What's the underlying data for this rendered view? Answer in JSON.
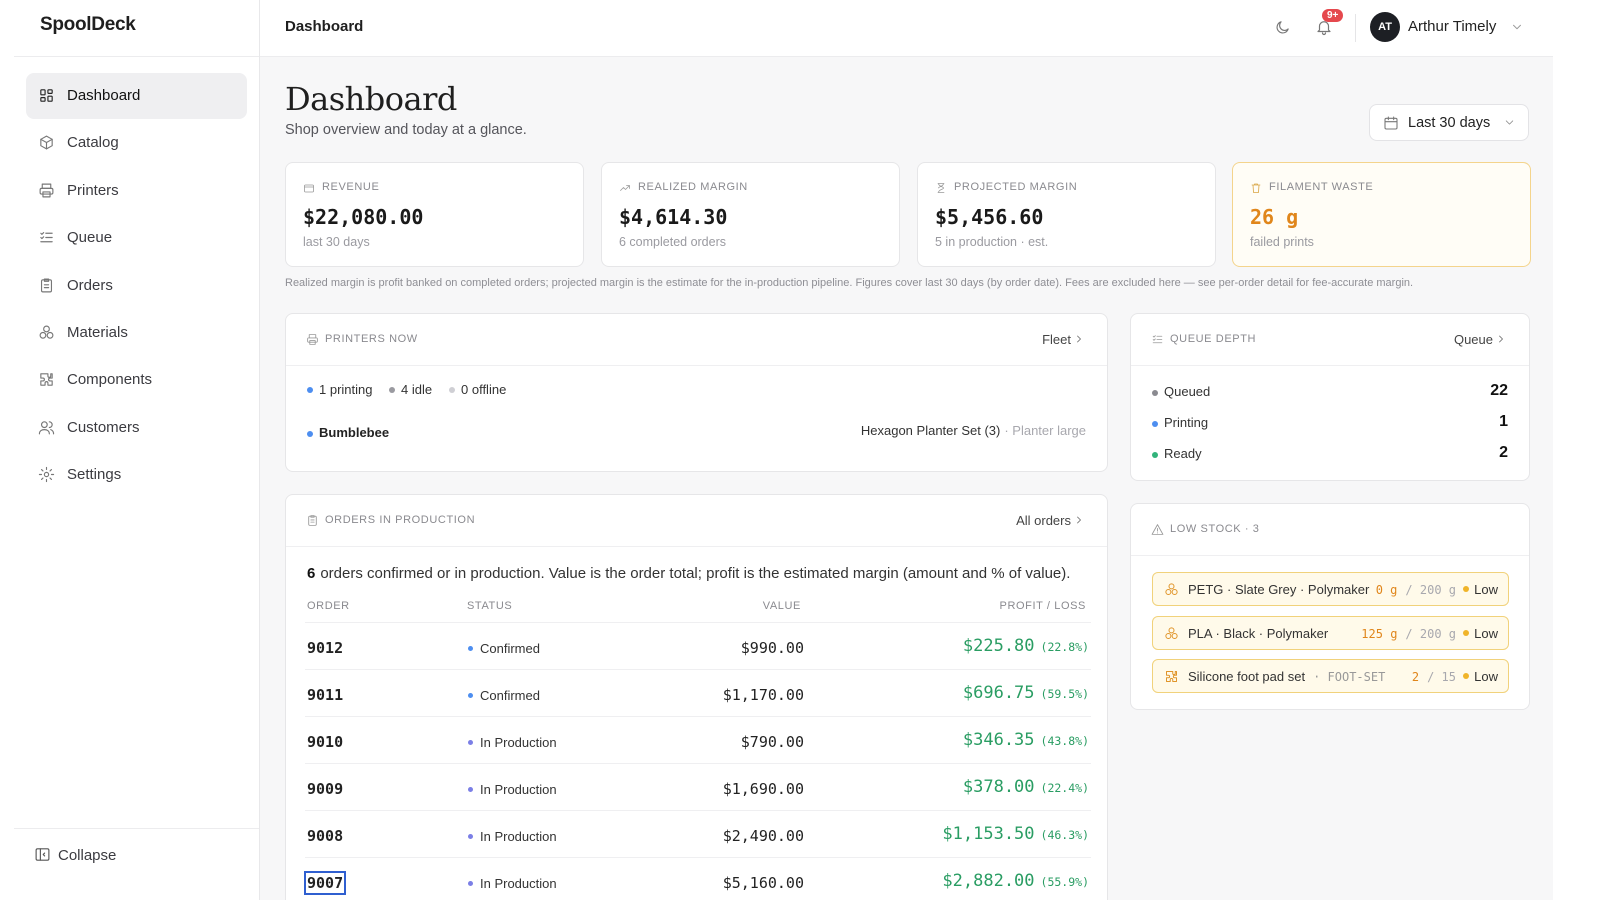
{
  "sidebar": {
    "logo": "SpoolDeck",
    "nav": [
      "Dashboard",
      "Catalog",
      "Printers",
      "Queue",
      "Orders",
      "Materials",
      "Components",
      "Customers",
      "Settings"
    ],
    "collapse": "Collapse"
  },
  "topbar": {
    "title": "Dashboard",
    "notifications": "9+",
    "avatar": "AT",
    "user": "Arthur Timely"
  },
  "header": {
    "title": "Dashboard",
    "subtitle": "Shop overview and today at a glance.",
    "range": "Last 30 days"
  },
  "kpis": [
    {
      "label": "REVENUE",
      "value": "$22,080.00",
      "sub": "last 30 days"
    },
    {
      "label": "REALIZED MARGIN",
      "value": "$4,614.30",
      "sub": "6 completed orders"
    },
    {
      "label": "PROJECTED MARGIN",
      "value": "$5,456.60",
      "sub": "5 in production · est."
    },
    {
      "label": "FILAMENT WASTE",
      "value": "26",
      "unit": "g",
      "sub": "failed prints"
    }
  ],
  "note": "Realized margin is profit banked on completed orders; projected margin is the estimate for the in-production pipeline. Figures cover last 30 days (by order date). Fees are excluded here — see per-order detail for fee-accurate margin.",
  "printers": {
    "title": "PRINTERS NOW",
    "link": "Fleet",
    "statuses": [
      "1 printing",
      "4 idle",
      "0 offline"
    ],
    "active": {
      "name": "Bumblebee",
      "job": "Hexagon Planter Set (3)",
      "detail": "· Planter large"
    }
  },
  "queue": {
    "title": "QUEUE DEPTH",
    "link": "Queue",
    "rows": [
      {
        "label": "Queued",
        "value": 22
      },
      {
        "label": "Printing",
        "value": 1
      },
      {
        "label": "Ready",
        "value": 2
      }
    ]
  },
  "orders": {
    "title": "ORDERS IN PRODUCTION",
    "link": "All orders",
    "count": "6",
    "summary": "orders confirmed or in production. Value is the order total; profit is the estimated margin (amount and % of value).",
    "columns": [
      "ORDER",
      "STATUS",
      "VALUE",
      "PROFIT / LOSS"
    ],
    "rows": [
      {
        "order": "9012",
        "status": "Confirmed",
        "value": "$990.00",
        "profit": "$225.80",
        "pct": "(22.8%)"
      },
      {
        "order": "9011",
        "status": "Confirmed",
        "value": "$1,170.00",
        "profit": "$696.75",
        "pct": "(59.5%)"
      },
      {
        "order": "9010",
        "status": "In Production",
        "value": "$790.00",
        "profit": "$346.35",
        "pct": "(43.8%)"
      },
      {
        "order": "9009",
        "status": "In Production",
        "value": "$1,690.00",
        "profit": "$378.00",
        "pct": "(22.4%)"
      },
      {
        "order": "9008",
        "status": "In Production",
        "value": "$2,490.00",
        "profit": "$1,153.50",
        "pct": "(46.3%)"
      },
      {
        "order": "9007",
        "status": "In Production",
        "value": "$5,160.00",
        "profit": "$2,882.00",
        "pct": "(55.9%)"
      }
    ]
  },
  "low_stock": {
    "title": "LOW STOCK · 3",
    "items": [
      {
        "name": "PETG · Slate Grey · Polymaker",
        "qty": "0 g",
        "of": "/ 200 g",
        "level": "Low"
      },
      {
        "name": "PLA · Black · Polymaker",
        "qty": "125 g",
        "of": "/ 200 g",
        "level": "Low"
      },
      {
        "name": "Silicone foot pad set",
        "sku": "· FOOT-SET",
        "qty": "2",
        "of": "/ 15",
        "level": "Low"
      }
    ]
  }
}
